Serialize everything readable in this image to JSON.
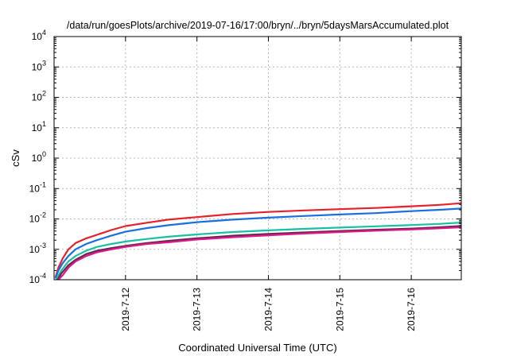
{
  "chart_data": {
    "type": "line",
    "title": "/data/run/goesPlots/archive/2019-07-16/17:00/bryn/../bryn/5daysMarsAccumulated.plot",
    "xlabel": "Coordinated Universal Time (UTC)",
    "ylabel": "cSv",
    "yscale": "log",
    "ylim": [
      0.0001,
      10000
    ],
    "xlim": [
      0.0,
      5.7
    ],
    "x_units": "days since 2019-07-11 00:00 UTC",
    "grid": true,
    "legend": "none",
    "x_ticks": [
      {
        "x": 1,
        "label": "2019-7-12"
      },
      {
        "x": 2,
        "label": "2019-7-13"
      },
      {
        "x": 3,
        "label": "2019-7-14"
      },
      {
        "x": 4,
        "label": "2019-7-15"
      },
      {
        "x": 5,
        "label": "2019-7-16"
      }
    ],
    "y_ticks": [
      {
        "value": 0.0001,
        "base": "10",
        "exp": "-4"
      },
      {
        "value": 0.001,
        "base": "10",
        "exp": "-3"
      },
      {
        "value": 0.01,
        "base": "10",
        "exp": "-2"
      },
      {
        "value": 0.1,
        "base": "10",
        "exp": "-1"
      },
      {
        "value": 1,
        "base": "10",
        "exp": "0"
      },
      {
        "value": 10,
        "base": "10",
        "exp": "1"
      },
      {
        "value": 100,
        "base": "10",
        "exp": "2"
      },
      {
        "value": 1000,
        "base": "10",
        "exp": "3"
      },
      {
        "value": 10000,
        "base": "10",
        "exp": "4"
      }
    ],
    "series": [
      {
        "color": "#e8202a",
        "x": [
          0.02,
          0.06,
          0.12,
          0.2,
          0.3,
          0.45,
          0.6,
          0.8,
          1.0,
          1.3,
          1.6,
          2.0,
          2.5,
          3.0,
          3.5,
          4.0,
          4.5,
          5.0,
          5.4,
          5.7
        ],
        "y": [
          0.00012,
          0.00025,
          0.0005,
          0.001,
          0.0016,
          0.0023,
          0.003,
          0.0043,
          0.0058,
          0.0075,
          0.0095,
          0.0115,
          0.0145,
          0.017,
          0.019,
          0.021,
          0.023,
          0.026,
          0.029,
          0.033
        ]
      },
      {
        "color": "#1a6fe0",
        "x": [
          0.02,
          0.06,
          0.12,
          0.2,
          0.3,
          0.45,
          0.6,
          0.8,
          1.0,
          1.3,
          1.6,
          2.0,
          2.5,
          3.0,
          3.5,
          4.0,
          4.5,
          5.0,
          5.4,
          5.7
        ],
        "y": [
          0.00011,
          0.0002,
          0.00035,
          0.0006,
          0.001,
          0.0015,
          0.002,
          0.0028,
          0.0038,
          0.005,
          0.0062,
          0.0078,
          0.0095,
          0.011,
          0.0125,
          0.014,
          0.0155,
          0.018,
          0.02,
          0.022
        ]
      },
      {
        "color": "#1bbfa6",
        "x": [
          0.03,
          0.1,
          0.2,
          0.3,
          0.45,
          0.6,
          0.8,
          1.0,
          1.3,
          1.6,
          2.0,
          2.5,
          3.0,
          3.5,
          4.0,
          4.5,
          5.0,
          5.4,
          5.7
        ],
        "y": [
          0.0001,
          0.0002,
          0.0004,
          0.0006,
          0.0009,
          0.0012,
          0.0015,
          0.0018,
          0.0022,
          0.0026,
          0.0031,
          0.0037,
          0.0042,
          0.0047,
          0.0052,
          0.0057,
          0.0063,
          0.0069,
          0.0076
        ]
      },
      {
        "color": "#5a2a4a",
        "x": [
          0.05,
          0.1,
          0.2,
          0.3,
          0.45,
          0.6,
          0.8,
          1.0,
          1.3,
          1.6,
          2.0,
          2.5,
          3.0,
          3.5,
          4.0,
          4.5,
          5.0,
          5.4,
          5.7
        ],
        "y": [
          0.0001,
          0.00016,
          0.0003,
          0.00045,
          0.0007,
          0.0009,
          0.0011,
          0.0013,
          0.0016,
          0.0019,
          0.0023,
          0.0028,
          0.0032,
          0.0036,
          0.004,
          0.0044,
          0.0048,
          0.0053,
          0.0059
        ]
      },
      {
        "color": "#e0178a",
        "x": [
          0.06,
          0.12,
          0.2,
          0.3,
          0.45,
          0.6,
          0.8,
          1.0,
          1.3,
          1.6,
          2.0,
          2.5,
          3.0,
          3.5,
          4.0,
          4.5,
          5.0,
          5.4,
          5.7
        ],
        "y": [
          0.0001,
          0.00014,
          0.00025,
          0.0004,
          0.0006,
          0.0008,
          0.001,
          0.0012,
          0.0015,
          0.0017,
          0.0021,
          0.0025,
          0.0029,
          0.0033,
          0.0037,
          0.0041,
          0.0045,
          0.0049,
          0.0053
        ]
      }
    ]
  }
}
